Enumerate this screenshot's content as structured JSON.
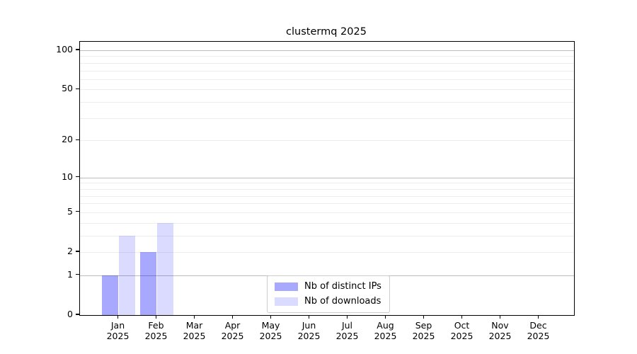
{
  "title": "clustermq 2025",
  "colors": {
    "background": "#ffffff",
    "spine": "#000000",
    "major_gridline": "#bdbdbd",
    "minor_gridline": "#ededed",
    "text": "#000000",
    "bar_base_color": "#0000ff",
    "bar_distinct_ips_rendered": "#a8a8ff",
    "bar_downloads_rendered": "#dbdbff"
  },
  "chart_data": {
    "type": "bar",
    "title": "clustermq 2025",
    "categories": [
      {
        "month": "Jan",
        "year": "2025"
      },
      {
        "month": "Feb",
        "year": "2025"
      },
      {
        "month": "Mar",
        "year": "2025"
      },
      {
        "month": "Apr",
        "year": "2025"
      },
      {
        "month": "May",
        "year": "2025"
      },
      {
        "month": "Jun",
        "year": "2025"
      },
      {
        "month": "Jul",
        "year": "2025"
      },
      {
        "month": "Aug",
        "year": "2025"
      },
      {
        "month": "Sep",
        "year": "2025"
      },
      {
        "month": "Oct",
        "year": "2025"
      },
      {
        "month": "Nov",
        "year": "2025"
      },
      {
        "month": "Dec",
        "year": "2025"
      }
    ],
    "series": [
      {
        "name": "Nb of distinct IPs",
        "color": "#0000ff",
        "alpha": 0.34,
        "values": [
          1,
          2,
          0,
          0,
          0,
          0,
          0,
          0,
          0,
          0,
          0,
          0
        ]
      },
      {
        "name": "Nb of downloads",
        "color": "#0000ff",
        "alpha": 0.14,
        "values": [
          3,
          4,
          0,
          0,
          0,
          0,
          0,
          0,
          0,
          0,
          0,
          0
        ]
      }
    ],
    "yscale": "log1p",
    "ylim": [
      0,
      116
    ],
    "yticks": [
      0,
      1,
      2,
      5,
      10,
      20,
      50,
      100
    ],
    "major_gridline_values": [
      1,
      10,
      100
    ],
    "minor_gridline_values": [
      2,
      3,
      4,
      5,
      6,
      7,
      8,
      9,
      20,
      30,
      40,
      50,
      60,
      70,
      80,
      90
    ],
    "grid": "on",
    "legend_position": "lower center",
    "xlabel": "",
    "ylabel": ""
  }
}
